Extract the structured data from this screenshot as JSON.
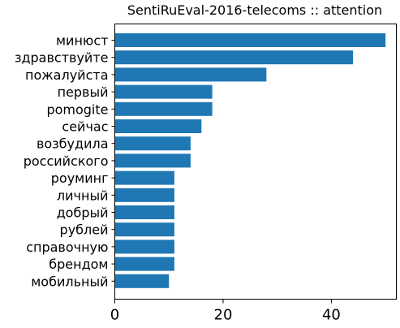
{
  "chart_data": {
    "type": "bar",
    "orientation": "horizontal",
    "title": "SentiRuEval-2016-telecoms :: attention",
    "xlabel": "",
    "ylabel": "",
    "xlim": [
      0,
      52
    ],
    "x_ticks": [
      0,
      20,
      40
    ],
    "grid": false,
    "categories": [
      "минюст",
      "здравствуйте",
      "пожалуйста",
      "первый",
      "pomogite",
      "сейчас",
      "возбудила",
      "российского",
      "роуминг",
      "личный",
      "добрый",
      "рублей",
      "справочную",
      "брендом",
      "мобильный"
    ],
    "values": [
      50,
      44,
      28,
      18,
      18,
      16,
      14,
      14,
      11,
      11,
      11,
      11,
      11,
      11,
      10
    ],
    "bar_color": "#1f77b4"
  }
}
